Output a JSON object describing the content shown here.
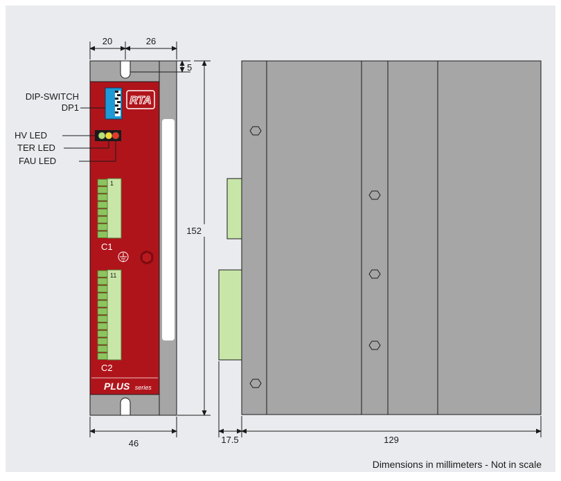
{
  "colors": {
    "background": "#e9ebee",
    "panel_red": "#b0141b",
    "housing_grey": "#a6a6a6",
    "connector_green": "#c8e6a8",
    "line": "#1a1a1a"
  },
  "front_view": {
    "dimensions": {
      "top_left_width": "20",
      "top_right_width": "26",
      "slot_offset": "5",
      "height": "152",
      "total_width": "46"
    },
    "labels": {
      "dip_switch": "DIP-SWITCH",
      "dp1": "DP1",
      "hv_led": "HV  LED",
      "ter_led": "TER LED",
      "fau_led": "FAU LED",
      "c1": "C1",
      "c2": "C2",
      "c1_pin": "1",
      "c2_pin": "11",
      "plus": "PLUS",
      "series": "series",
      "logo": "RTA"
    }
  },
  "side_view": {
    "dimensions": {
      "connector_depth": "17.5",
      "body_depth": "129"
    }
  },
  "footer_note": "Dimensions in millimeters - Not in scale"
}
